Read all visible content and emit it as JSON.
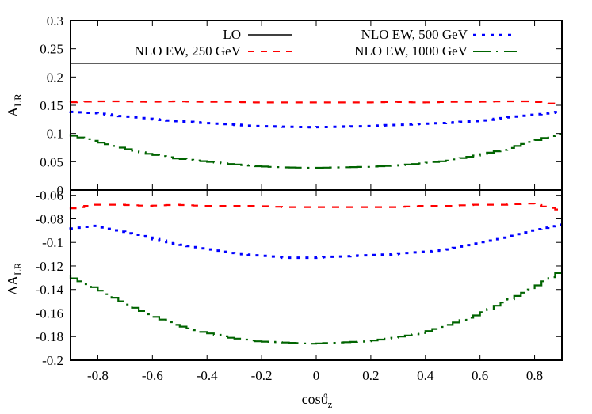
{
  "chart_data": {
    "type": "line",
    "title": "",
    "xlabel": "cosϑ",
    "xlabel_sub": "z",
    "xlim": [
      -0.9,
      0.9
    ],
    "x_ticks": [
      -0.8,
      -0.6,
      -0.4,
      -0.2,
      0,
      0.2,
      0.4,
      0.6,
      0.8
    ],
    "x_tick_labels": [
      "-0.8",
      "-0.6",
      "-0.4",
      "-0.2",
      "0",
      "0.2",
      "0.4",
      "0.6",
      "0.8"
    ],
    "grid": false,
    "legend_position": "top, inside upper panel, two columns",
    "legend": [
      {
        "label": "LO",
        "color": "#000000",
        "style": "solid"
      },
      {
        "label": "NLO EW, 250 GeV",
        "color": "#ff0000",
        "style": "dashed"
      },
      {
        "label": "NLO EW, 500 GeV",
        "color": "#0000ff",
        "style": "dotted"
      },
      {
        "label": "NLO EW, 1000 GeV",
        "color": "#006400",
        "style": "dash-dot"
      }
    ],
    "x": [
      -0.9,
      -0.8,
      -0.7,
      -0.6,
      -0.5,
      -0.4,
      -0.3,
      -0.2,
      -0.1,
      0.0,
      0.1,
      0.2,
      0.3,
      0.4,
      0.5,
      0.6,
      0.7,
      0.8,
      0.9
    ],
    "panels": [
      {
        "name": "upper",
        "ylabel": "A",
        "ylabel_sub": "LR",
        "ylim": [
          0,
          0.3
        ],
        "y_ticks": [
          0,
          0.05,
          0.1,
          0.15,
          0.2,
          0.25,
          0.3
        ],
        "y_tick_labels": [
          "0",
          "0.05",
          "0.1",
          "0.15",
          "0.2",
          "0.25",
          "0.3"
        ],
        "series": [
          {
            "name": "NLO EW, 250 GeV",
            "color": "#ff0000",
            "style": "dashed",
            "values": [
              0.155,
              0.157,
              0.157,
              0.156,
              0.157,
              0.156,
              0.156,
              0.155,
              0.155,
              0.155,
              0.155,
              0.155,
              0.156,
              0.155,
              0.156,
              0.156,
              0.157,
              0.157,
              0.152
            ]
          },
          {
            "name": "NLO EW, 500 GeV",
            "color": "#0000ff",
            "style": "dotted",
            "values": [
              0.139,
              0.136,
              0.131,
              0.126,
              0.122,
              0.119,
              0.116,
              0.113,
              0.112,
              0.111,
              0.112,
              0.113,
              0.115,
              0.117,
              0.119,
              0.122,
              0.127,
              0.133,
              0.138
            ]
          },
          {
            "name": "NLO EW, 1000 GeV",
            "color": "#006400",
            "style": "dash-dot",
            "values": [
              0.099,
              0.087,
              0.075,
              0.064,
              0.056,
              0.051,
              0.046,
              0.042,
              0.04,
              0.039,
              0.04,
              0.041,
              0.043,
              0.047,
              0.052,
              0.061,
              0.071,
              0.085,
              0.099
            ]
          }
        ]
      },
      {
        "name": "lower",
        "ylabel": "ΔA",
        "ylabel_sub": "LR",
        "ylim": [
          -0.2,
          -0.055
        ],
        "y_ticks": [
          -0.2,
          -0.18,
          -0.16,
          -0.14,
          -0.12,
          -0.1,
          -0.08,
          -0.06
        ],
        "y_tick_labels": [
          "-0.2",
          "-0.18",
          "-0.16",
          "-0.14",
          "-0.12",
          "-0.1",
          "-0.08",
          "-0.06"
        ],
        "series": [
          {
            "name": "NLO EW, 250 GeV",
            "color": "#ff0000",
            "style": "dashed",
            "values": [
              -0.072,
              -0.068,
              -0.068,
              -0.069,
              -0.068,
              -0.069,
              -0.069,
              -0.069,
              -0.07,
              -0.07,
              -0.07,
              -0.07,
              -0.07,
              -0.069,
              -0.069,
              -0.068,
              -0.068,
              -0.067,
              -0.072
            ]
          },
          {
            "name": "NLO EW, 500 GeV",
            "color": "#0000ff",
            "style": "dotted",
            "values": [
              -0.089,
              -0.086,
              -0.091,
              -0.096,
              -0.101,
              -0.105,
              -0.109,
              -0.111,
              -0.113,
              -0.113,
              -0.112,
              -0.111,
              -0.11,
              -0.108,
              -0.106,
              -0.101,
              -0.096,
              -0.09,
              -0.085
            ]
          },
          {
            "name": "NLO EW, 1000 GeV",
            "color": "#006400",
            "style": "dash-dot",
            "values": [
              -0.128,
              -0.138,
              -0.15,
              -0.161,
              -0.17,
              -0.176,
              -0.181,
              -0.184,
              -0.185,
              -0.186,
              -0.185,
              -0.184,
              -0.181,
              -0.177,
              -0.17,
              -0.162,
              -0.151,
              -0.14,
              -0.126
            ]
          }
        ]
      }
    ]
  }
}
